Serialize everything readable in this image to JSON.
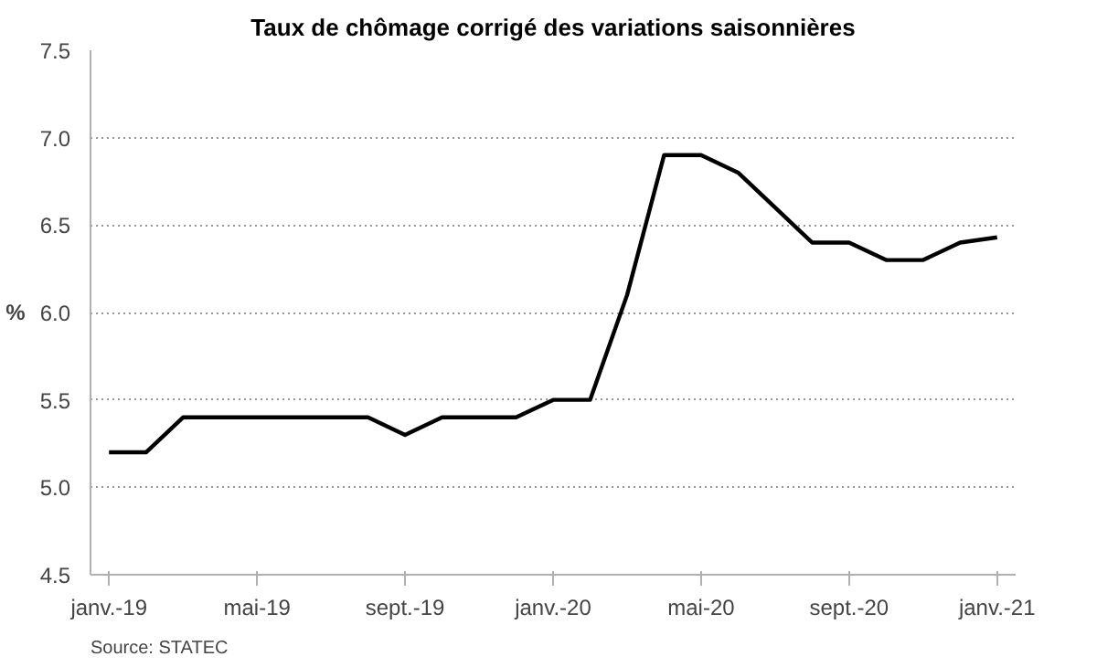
{
  "chart_data": {
    "type": "line",
    "title": "Taux de chômage corrigé des variations saisonnières",
    "categories": [
      "janv.-19",
      null,
      null,
      null,
      "mai-19",
      null,
      null,
      null,
      "sept.-19",
      null,
      null,
      null,
      "janv.-20",
      null,
      null,
      null,
      "mai-20",
      null,
      null,
      null,
      "sept.-20",
      null,
      null,
      null,
      "janv.-21"
    ],
    "series": [
      {
        "color": "#000000",
        "values": [
          5.2,
          5.2,
          5.4,
          5.4,
          5.4,
          5.4,
          5.4,
          5.4,
          5.3,
          5.4,
          5.4,
          5.4,
          5.5,
          5.5,
          6.1,
          6.9,
          6.9,
          6.8,
          6.6,
          6.4,
          6.4,
          6.3,
          6.3,
          6.4,
          6.43
        ]
      }
    ],
    "ylabel": "%",
    "ylim": [
      4.5,
      7.5
    ],
    "yticks": [
      {
        "value": 4.5,
        "label": "4.5"
      },
      {
        "value": 5,
        "label": "5.0"
      },
      {
        "value": 5.5,
        "label": "5.5"
      },
      {
        "value": 6,
        "label": "6.0"
      },
      {
        "value": 6.5,
        "label": "6.5"
      },
      {
        "value": 7,
        "label": "7.0"
      },
      {
        "value": 7.5,
        "label": "7.5"
      }
    ],
    "grid": "y",
    "marker": "none",
    "line_style": "solid",
    "annotations": [
      "Source: STATEC"
    ]
  }
}
